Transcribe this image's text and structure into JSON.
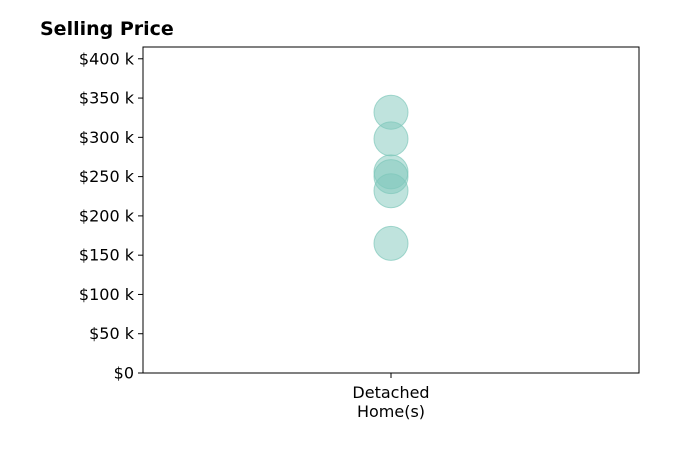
{
  "chart_data": {
    "type": "scatter",
    "title": "Selling Price",
    "xlabel": "",
    "ylabel": "",
    "categories": [
      "Detached\nHome(s)"
    ],
    "category_label_lines": [
      "Detached",
      "Home(s)"
    ],
    "series": [
      {
        "category": "Detached\nHome(s)",
        "values": [
          332000,
          298000,
          256000,
          250000,
          232000,
          165000
        ],
        "color": "#7fc7bb"
      }
    ],
    "ylim": [
      0,
      415000
    ],
    "yticks": [
      0,
      50000,
      100000,
      150000,
      200000,
      250000,
      300000,
      350000,
      400000
    ],
    "ytick_labels": [
      "$0",
      "$50 k",
      "$100 k",
      "$150 k",
      "$200 k",
      "$250 k",
      "$300 k",
      "$350 k",
      "$400 k"
    ],
    "grid": false,
    "legend": "none"
  }
}
